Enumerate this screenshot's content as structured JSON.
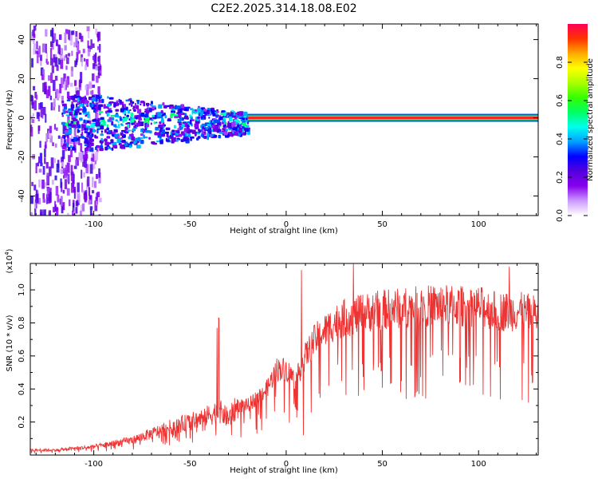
{
  "title": "C2E2.2025.314.18.08.E02",
  "chart_data": [
    {
      "type": "heatmap",
      "xlabel": "Height of straight line (km)",
      "ylabel": "Frequency (Hz)",
      "xlim": [
        -133,
        131
      ],
      "ylim": [
        -50,
        48
      ],
      "xticks": [
        -100,
        -50,
        0,
        50,
        100
      ],
      "yticks": [
        -40,
        -20,
        0,
        20,
        40
      ],
      "colorbar": {
        "label": "Normalized spectral amplitude",
        "range": [
          0,
          1
        ],
        "ticks": [
          "0.0",
          "0.2",
          "0.4",
          "0.6",
          "0.8"
        ],
        "colors": [
          "#ffffff",
          "#cc99ff",
          "#8800ee",
          "#5500dd",
          "#0000ff",
          "#00a0ff",
          "#00ffee",
          "#00ff66",
          "#33ff00",
          "#aaff00",
          "#ffff00",
          "#ffaa00",
          "#ff3300",
          "#ff0055"
        ]
      },
      "features": [
        {
          "name": "scattered broadband energy",
          "x_range": [
            -133,
            -97
          ],
          "freq_range": [
            -50,
            48
          ],
          "amplitude": 0.12
        },
        {
          "name": "noisy band",
          "x_range": [
            -97,
            -20
          ],
          "freq_range": [
            -20,
            8
          ],
          "amplitude": 0.3
        },
        {
          "name": "narrow line at 0 Hz",
          "x_range": [
            -20,
            131
          ],
          "freq": 0,
          "amplitude": 0.95
        }
      ]
    },
    {
      "type": "line",
      "xlabel": "Height of straight line (km)",
      "ylabel": "SNR (10 * v/v)",
      "y_multiplier": "(x10",
      "y_multiplier_exp": "4",
      "y_multiplier_close": ")",
      "xlim": [
        -133,
        131
      ],
      "ylim": [
        0,
        1.16
      ],
      "xticks": [
        -100,
        -50,
        0,
        50,
        100
      ],
      "yticks": [
        0.2,
        0.4,
        0.6,
        0.8,
        1.0
      ],
      "color": "#ee3333",
      "envelope": {
        "x": [
          -133,
          -120,
          -110,
          -100,
          -90,
          -80,
          -70,
          -60,
          -50,
          -40,
          -35,
          -30,
          -25,
          -20,
          -15,
          -10,
          -5,
          0,
          5,
          10,
          15,
          20,
          25,
          30,
          35,
          40,
          50,
          60,
          70,
          80,
          90,
          100,
          110,
          120,
          131
        ],
        "y": [
          0.03,
          0.03,
          0.04,
          0.05,
          0.07,
          0.09,
          0.13,
          0.17,
          0.2,
          0.24,
          0.27,
          0.22,
          0.3,
          0.3,
          0.35,
          0.4,
          0.52,
          0.52,
          0.45,
          0.6,
          0.7,
          0.75,
          0.8,
          0.83,
          0.84,
          0.86,
          0.88,
          0.89,
          0.9,
          0.91,
          0.9,
          0.9,
          0.87,
          0.87,
          0.85
        ]
      },
      "spikes": [
        {
          "x": -36,
          "y": 0.77
        },
        {
          "x": -35,
          "y": 0.83
        },
        {
          "x": 8,
          "y": 1.12
        },
        {
          "x": 9,
          "y": 0.12
        },
        {
          "x": 35,
          "y": 1.16
        },
        {
          "x": 116,
          "y": 1.14
        }
      ]
    }
  ]
}
